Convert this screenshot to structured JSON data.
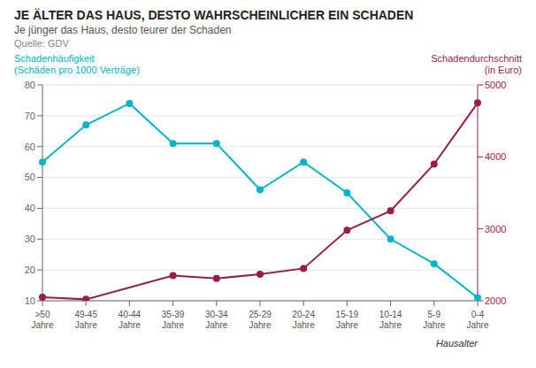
{
  "chart_data": {
    "type": "line",
    "title": "JE ÄLTER DAS HAUS, DESTO WAHRSCHEINLICHER EIN SCHADEN",
    "subtitle": "Je jünger das Haus, desto teurer der Schaden",
    "annotations": [
      "Quelle: GDV"
    ],
    "x_label": "Hausalter",
    "categories": [
      ">50\nJahre",
      "49-45\nJahre",
      "40-44\nJahre",
      "35-39\nJahre",
      "30-34\nJahre",
      "25-29\nJahre",
      "20-24\nJahre",
      "15-19\nJahre",
      "10-14\nJahre",
      "5-9\nJahre",
      "0-4\nJahre"
    ],
    "series": [
      {
        "name": "Schadenhäufigkeit\n(Schäden pro 1000 Verträge)",
        "color": "#00B5C8",
        "marker": "circle",
        "values": [
          55,
          67,
          74,
          61,
          61,
          46,
          55,
          45,
          30,
          22,
          11
        ]
      },
      {
        "name": "Schadendurchschnitt\n(in Euro)",
        "color": "#9B1B4B",
        "marker": "circle",
        "axis": "y2",
        "values": [
          2050,
          2020,
          null,
          2350,
          2310,
          2370,
          2450,
          2980,
          3250,
          3900,
          4750
        ]
      }
    ],
    "ylim": [
      10,
      80
    ],
    "yticks": [
      10,
      20,
      30,
      40,
      50,
      60,
      70,
      80
    ],
    "y2lim": [
      2000,
      5000
    ],
    "y2ticks": [
      2000,
      3000,
      4000,
      5000
    ],
    "grid": true
  }
}
